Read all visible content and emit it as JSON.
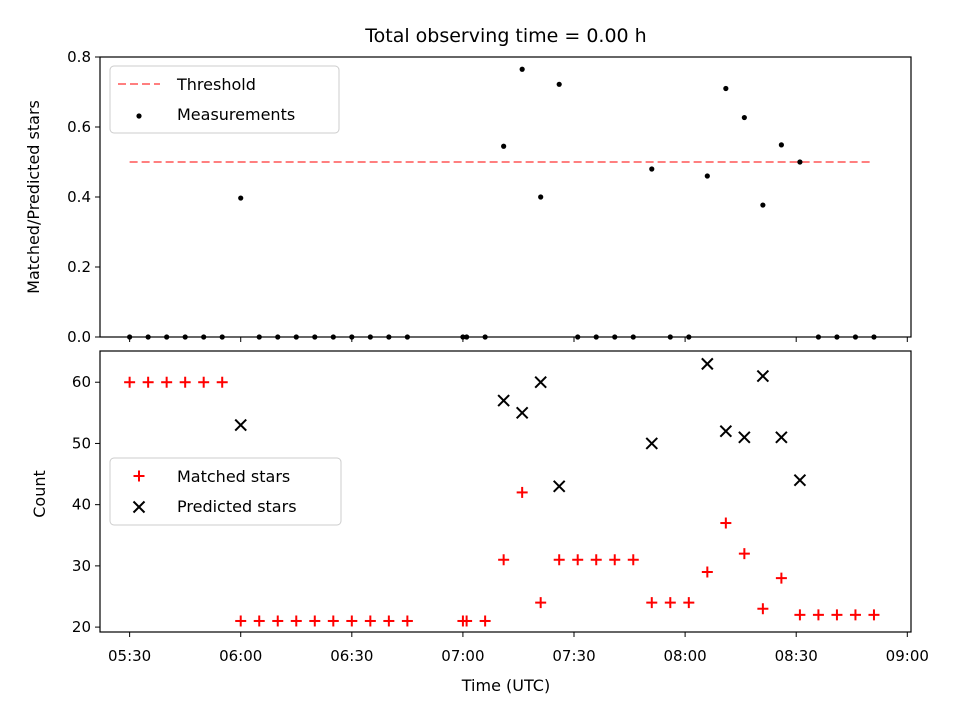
{
  "chart_data": [
    {
      "type": "scatter",
      "title": "Total observing time = 0.00 h",
      "xlabel": "",
      "ylabel": "Matched/Predicted stars",
      "ylim": [
        0,
        0.8
      ],
      "yticks": [
        "0.0",
        "0.2",
        "0.4",
        "0.6",
        "0.8"
      ],
      "legend_placement": "upper-left",
      "threshold": {
        "name": "Threshold",
        "value": 0.5,
        "x_start": "05:30",
        "x_end": "08:50",
        "color": "#ff7f7f"
      },
      "series": [
        {
          "name": "Measurements",
          "color": "#000000",
          "marker": "dot",
          "x": [
            "05:30",
            "05:35",
            "05:40",
            "05:45",
            "05:50",
            "05:55",
            "06:00",
            "06:05",
            "06:10",
            "06:15",
            "06:20",
            "06:25",
            "06:30",
            "06:35",
            "06:40",
            "06:45",
            "07:00",
            "07:01",
            "07:06",
            "07:11",
            "07:16",
            "07:21",
            "07:26",
            "07:31",
            "07:36",
            "07:41",
            "07:46",
            "07:51",
            "07:56",
            "08:01",
            "08:06",
            "08:11",
            "08:16",
            "08:21",
            "08:26",
            "08:31",
            "08:36",
            "08:41",
            "08:46",
            "08:51"
          ],
          "y": [
            0,
            0,
            0,
            0,
            0,
            0,
            0.397,
            0,
            0,
            0,
            0,
            0,
            0,
            0,
            0,
            0,
            0,
            0,
            0,
            0.545,
            0.765,
            0.4,
            0.722,
            0,
            0,
            0,
            0,
            0.48,
            0,
            0,
            0.46,
            0.71,
            0.627,
            0.377,
            0.549,
            0.5,
            0,
            0,
            0,
            0
          ]
        }
      ]
    },
    {
      "type": "scatter",
      "xlabel": "Time (UTC)",
      "ylabel": "Count",
      "xlim": [
        "05:22",
        "09:01"
      ],
      "xticks": [
        "05:30",
        "06:00",
        "06:30",
        "07:00",
        "07:30",
        "08:00",
        "08:30",
        "09:00"
      ],
      "ylim": [
        19.2,
        65.1
      ],
      "yticks": [
        "20",
        "30",
        "40",
        "50",
        "60"
      ],
      "legend_placement": "center-left",
      "series": [
        {
          "name": "Matched stars",
          "color": "#ff0000",
          "marker": "plus",
          "x": [
            "05:30",
            "05:35",
            "05:40",
            "05:45",
            "05:50",
            "05:55",
            "06:00",
            "06:05",
            "06:10",
            "06:15",
            "06:20",
            "06:25",
            "06:30",
            "06:35",
            "06:40",
            "06:45",
            "07:00",
            "07:01",
            "07:06",
            "07:11",
            "07:16",
            "07:21",
            "07:26",
            "07:31",
            "07:36",
            "07:41",
            "07:46",
            "07:51",
            "07:56",
            "08:01",
            "08:06",
            "08:11",
            "08:16",
            "08:21",
            "08:26",
            "08:31",
            "08:36",
            "08:41",
            "08:46",
            "08:51"
          ],
          "y": [
            60,
            60,
            60,
            60,
            60,
            60,
            21,
            21,
            21,
            21,
            21,
            21,
            21,
            21,
            21,
            21,
            21,
            21,
            21,
            31,
            42,
            24,
            31,
            31,
            31,
            31,
            31,
            24,
            24,
            24,
            29,
            37,
            32,
            23,
            28,
            22,
            22,
            22,
            22,
            22
          ]
        },
        {
          "name": "Predicted stars",
          "color": "#000000",
          "marker": "x",
          "x": [
            "06:00",
            "07:11",
            "07:16",
            "07:21",
            "07:26",
            "07:51",
            "08:06",
            "08:11",
            "08:16",
            "08:21",
            "08:26",
            "08:31"
          ],
          "y": [
            53,
            57,
            55,
            60,
            43,
            50,
            63,
            52,
            51,
            61,
            51,
            44
          ]
        }
      ]
    }
  ]
}
